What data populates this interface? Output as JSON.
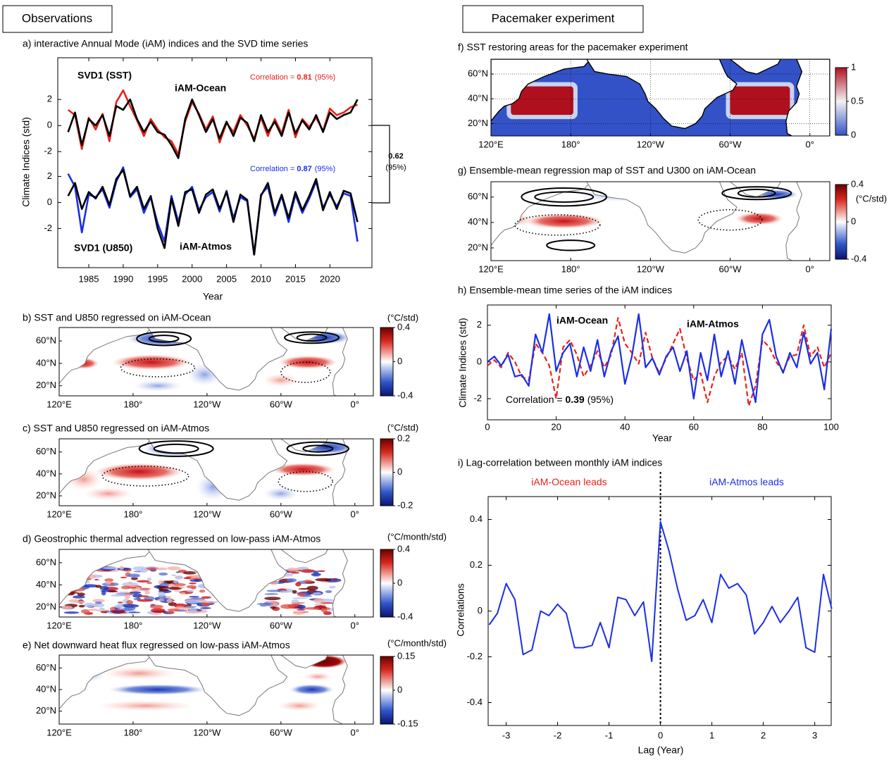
{
  "panel_headers": [
    "Observations",
    "Pacemaker experiment"
  ],
  "chart_data": [
    {
      "type": "line",
      "title": "a) interactive Annual Mode (iAM) indices and the SVD time series",
      "xlabel": "Year",
      "ylabel": "Climate Indices (std)",
      "x": [
        1982,
        1983,
        1984,
        1985,
        1986,
        1987,
        1988,
        1989,
        1990,
        1991,
        1992,
        1993,
        1994,
        1995,
        1996,
        1997,
        1998,
        1999,
        2000,
        2001,
        2002,
        2003,
        2004,
        2005,
        2006,
        2007,
        2008,
        2009,
        2010,
        2011,
        2012,
        2013,
        2014,
        2015,
        2016,
        2017,
        2018,
        2019,
        2020,
        2021,
        2022,
        2023,
        2024
      ],
      "xlim": [
        1980.5,
        2026.1
      ],
      "xticks": [
        1985,
        1990,
        1995,
        2000,
        2005,
        2010,
        2015,
        2020
      ],
      "ylim": [
        -10.9,
        5.2
      ],
      "yticks": [
        -2,
        0,
        2
      ],
      "y2lim": [
        -5.0,
        11.1
      ],
      "y2ticks": [
        -2,
        0,
        2
      ],
      "series": [
        {
          "name": "SVD1 (SST)",
          "color": "#e8231a",
          "values": [
            1.2,
            0.8,
            -1.8,
            0.6,
            -0.3,
            0.9,
            -1.2,
            1.8,
            2.7,
            1.5,
            0.4,
            -0.8,
            0.5,
            -0.3,
            -0.9,
            -1.2,
            -2.2,
            0.3,
            1.8,
            0.9,
            -0.3,
            0.7,
            -1.3,
            0.2,
            -0.5,
            0.8,
            0.0,
            -1.0,
            0.6,
            -0.8,
            0.5,
            -0.6,
            1.2,
            -0.9,
            0.5,
            -0.1,
            0.6,
            -0.4,
            1.3,
            0.8,
            1.0,
            1.4,
            1.6
          ]
        },
        {
          "name": "iAM-Ocean",
          "color": "#000000",
          "values": [
            -0.5,
            1.0,
            -1.5,
            0.5,
            0.0,
            0.8,
            -0.8,
            1.5,
            1.2,
            2.0,
            0.5,
            -0.5,
            0.3,
            -0.5,
            -0.7,
            -1.5,
            -2.5,
            0.5,
            2.0,
            0.8,
            -0.5,
            0.5,
            -1.0,
            0.3,
            -0.8,
            0.6,
            0.2,
            -1.2,
            0.8,
            -0.5,
            0.3,
            -0.8,
            1.0,
            -0.6,
            0.4,
            -0.3,
            0.8,
            -0.5,
            1.0,
            0.5,
            0.8,
            1.0,
            2.0
          ]
        },
        {
          "name": "SVD1 (U850)",
          "color": "#1a2ee8",
          "axis": "y2",
          "values": [
            2.2,
            1.2,
            -2.3,
            0.6,
            0.4,
            1.0,
            -0.4,
            1.6,
            2.7,
            0.4,
            1.0,
            -0.8,
            0.4,
            -1.6,
            -3.0,
            0.5,
            -1.5,
            0.6,
            1.2,
            -0.6,
            0.4,
            0.8,
            -0.7,
            0.9,
            -1.2,
            0.4,
            0.1,
            -4.0,
            0.6,
            1.2,
            -1.0,
            0.5,
            -1.5,
            0.6,
            -0.8,
            0.3,
            1.6,
            -0.4,
            0.6,
            -0.3,
            0.7,
            0.5,
            -3.0
          ]
        },
        {
          "name": "iAM-Atmos",
          "color": "#000000",
          "axis": "y2",
          "values": [
            0.5,
            1.5,
            -0.5,
            0.8,
            0.3,
            1.2,
            -0.2,
            1.8,
            2.5,
            0.5,
            1.2,
            -0.5,
            0.5,
            -2.0,
            -3.5,
            0.3,
            -1.8,
            0.8,
            1.0,
            -0.8,
            0.6,
            1.0,
            -0.5,
            0.8,
            -1.5,
            0.6,
            0.2,
            -4.0,
            0.5,
            1.5,
            -0.8,
            0.6,
            -1.2,
            0.8,
            -0.6,
            0.5,
            1.8,
            -0.6,
            0.8,
            -0.5,
            0.9,
            0.7,
            -1.5
          ]
        }
      ],
      "annotations": [
        {
          "text": "Correlation = ",
          "value": 0.81,
          "note": "(95%)",
          "color": "#e8231a"
        },
        {
          "text": "Correlation = ",
          "value": 0.87,
          "note": "(95%)",
          "color": "#1a2ee8"
        },
        {
          "value": 0.62,
          "note": "(95%)",
          "color": "#000000"
        }
      ]
    },
    {
      "type": "map",
      "title": "b) SST and U850 regressed on iAM-Ocean",
      "xlim": [
        120,
        375
      ],
      "ylim": [
        11,
        72
      ],
      "xticks": [
        {
          "value": 120,
          "label": "120°E"
        },
        {
          "value": 180,
          "label": "180°"
        },
        {
          "value": 240,
          "label": "120°W"
        },
        {
          "value": 300,
          "label": "60°W"
        },
        {
          "value": 360,
          "label": "0°"
        }
      ],
      "yticks": [
        {
          "value": 60,
          "label": "60°N"
        },
        {
          "value": 40,
          "label": "40°N"
        },
        {
          "value": 20,
          "label": "20°N"
        }
      ],
      "colorbar": {
        "lim": [
          -0.4,
          0.4
        ],
        "ticks": [
          0.4,
          0,
          -0.4
        ],
        "units": "(°C/std)"
      }
    },
    {
      "type": "map",
      "title": "c) SST and U850 regressed on iAM-Atmos",
      "xlim": [
        120,
        375
      ],
      "ylim": [
        11,
        72
      ],
      "xticks": [
        {
          "value": 120,
          "label": "120°E"
        },
        {
          "value": 180,
          "label": "180°"
        },
        {
          "value": 240,
          "label": "120°W"
        },
        {
          "value": 300,
          "label": "60°W"
        },
        {
          "value": 360,
          "label": "0°"
        }
      ],
      "yticks": [
        {
          "value": 60,
          "label": "60°N"
        },
        {
          "value": 40,
          "label": "40°N"
        },
        {
          "value": 20,
          "label": "20°N"
        }
      ],
      "colorbar": {
        "lim": [
          -0.2,
          0.2
        ],
        "ticks": [
          0.2,
          0,
          -0.2
        ],
        "units": "(°C/std)"
      }
    },
    {
      "type": "map",
      "title": "d) Geostrophic thermal advection regressed on low-pass iAM-Atmos",
      "xlim": [
        120,
        375
      ],
      "ylim": [
        11,
        72
      ],
      "xticks": [
        {
          "value": 120,
          "label": "120°E"
        },
        {
          "value": 180,
          "label": "180°"
        },
        {
          "value": 240,
          "label": "120°W"
        },
        {
          "value": 300,
          "label": "60°W"
        },
        {
          "value": 360,
          "label": "0°"
        }
      ],
      "yticks": [
        {
          "value": 60,
          "label": "60°N"
        },
        {
          "value": 40,
          "label": "40°N"
        },
        {
          "value": 20,
          "label": "20°N"
        }
      ],
      "colorbar": {
        "lim": [
          -0.4,
          0.4
        ],
        "ticks": [
          0.4,
          0,
          -0.4
        ],
        "units": "(°C/month/std)"
      }
    },
    {
      "type": "map",
      "title": "e) Net downward heat flux regressed on low-pass iAM-Atmos",
      "xlim": [
        120,
        375
      ],
      "ylim": [
        8,
        72
      ],
      "xticks": [
        {
          "value": 120,
          "label": "120°E"
        },
        {
          "value": 180,
          "label": "180°"
        },
        {
          "value": 240,
          "label": "120°W"
        },
        {
          "value": 300,
          "label": "60°W"
        },
        {
          "value": 360,
          "label": "0°"
        }
      ],
      "yticks": [
        {
          "value": 60,
          "label": "60°N"
        },
        {
          "value": 40,
          "label": "40°N"
        },
        {
          "value": 20,
          "label": "20°N"
        }
      ],
      "colorbar": {
        "lim": [
          -0.15,
          0.15
        ],
        "ticks": [
          0.15,
          0,
          -0.15
        ],
        "units": "(°C/month/std)"
      }
    },
    {
      "type": "map",
      "title": "f) SST restoring areas for the pacemaker experiment",
      "xlim": [
        120,
        375
      ],
      "ylim": [
        10,
        72
      ],
      "xticks": [
        {
          "value": 120,
          "label": "120°E"
        },
        {
          "value": 180,
          "label": "180°"
        },
        {
          "value": 240,
          "label": "120°W"
        },
        {
          "value": 300,
          "label": "60°W"
        },
        {
          "value": 360,
          "label": "0°"
        }
      ],
      "yticks": [
        {
          "value": 60,
          "label": "60°N"
        },
        {
          "value": 40,
          "label": "40°N"
        },
        {
          "value": 20,
          "label": "20°N"
        }
      ],
      "colorbar": {
        "lim": [
          0,
          1
        ],
        "ticks": [
          1,
          0.5,
          0
        ]
      }
    },
    {
      "type": "map",
      "title": "g) Ensemble-mean regression map of SST and U300 on iAM-Ocean",
      "xlim": [
        120,
        375
      ],
      "ylim": [
        10,
        72
      ],
      "xticks": [
        {
          "value": 120,
          "label": "120°E"
        },
        {
          "value": 180,
          "label": "180°"
        },
        {
          "value": 240,
          "label": "120°W"
        },
        {
          "value": 300,
          "label": "60°W"
        },
        {
          "value": 360,
          "label": "0°"
        }
      ],
      "yticks": [
        {
          "value": 60,
          "label": "60°N"
        },
        {
          "value": 40,
          "label": "40°N"
        },
        {
          "value": 20,
          "label": "20°N"
        }
      ],
      "colorbar": {
        "lim": [
          -0.4,
          0.4
        ],
        "ticks": [
          0.4,
          0,
          -0.4
        ],
        "units": "(°C/std)"
      }
    },
    {
      "type": "line",
      "title": "h) Ensemble-mean time series of the iAM indices",
      "xlabel": "Year",
      "ylabel": "Climate Indices (std)",
      "x": [
        0,
        2,
        4,
        6,
        8,
        10,
        12,
        14,
        16,
        18,
        20,
        22,
        24,
        26,
        28,
        30,
        32,
        34,
        36,
        38,
        40,
        42,
        44,
        46,
        48,
        50,
        52,
        54,
        56,
        58,
        60,
        62,
        64,
        66,
        68,
        70,
        72,
        74,
        76,
        78,
        80,
        82,
        84,
        86,
        88,
        90,
        92,
        94,
        96,
        98,
        100
      ],
      "xlim": [
        0,
        100
      ],
      "xticks": [
        0,
        20,
        40,
        60,
        80,
        100
      ],
      "ylim": [
        -3.15,
        3.1
      ],
      "yticks": [
        -2,
        0,
        2
      ],
      "series": [
        {
          "name": "iAM-Ocean",
          "color": "#e8231a",
          "dashed": true,
          "values": [
            -0.2,
            0.1,
            -0.3,
            0.5,
            0.0,
            -0.8,
            -1.0,
            1.0,
            0.5,
            -0.2,
            -2.0,
            0.8,
            1.2,
            0.4,
            -0.8,
            -0.2,
            0.6,
            -0.3,
            0.4,
            2.4,
            1.0,
            0.5,
            -0.1,
            1.6,
            0.2,
            -0.6,
            0.2,
            1.0,
            1.8,
            0.2,
            -1.0,
            -0.6,
            -2.2,
            -0.8,
            0.0,
            0.3,
            -0.4,
            0.5,
            -2.4,
            -1.3,
            1.2,
            0.8,
            0.0,
            -0.5,
            0.3,
            0.4,
            2.0,
            0.3,
            0.8,
            -0.3,
            0.5
          ]
        },
        {
          "name": "iAM-Atmos",
          "color": "#1a2ee8",
          "values": [
            0.0,
            0.3,
            -0.2,
            0.4,
            -0.8,
            -0.7,
            -1.3,
            1.5,
            0.5,
            2.6,
            -0.5,
            0.5,
            1.0,
            -0.8,
            0.8,
            -0.5,
            1.2,
            -0.8,
            0.6,
            1.4,
            -1.2,
            0.3,
            2.6,
            -0.3,
            0.2,
            -0.7,
            0.3,
            0.8,
            -0.5,
            0.6,
            -2.0,
            0.5,
            -1.0,
            1.5,
            -0.8,
            0.6,
            -1.2,
            1.2,
            -0.5,
            -2.2,
            1.5,
            2.3,
            0.3,
            -0.6,
            0.5,
            -0.3,
            1.6,
            -0.1,
            0.5,
            -1.5,
            1.8
          ]
        }
      ],
      "annotations": [
        {
          "text": "Correlation = ",
          "value": 0.39,
          "note": "(95%)",
          "color": "#000000"
        }
      ]
    },
    {
      "type": "line",
      "title": "i) Lag-correlation between monthly iAM indices",
      "xlabel": "Lag (Year)",
      "ylabel": "Correlations",
      "x": [
        -3.33,
        -3.17,
        -3,
        -2.83,
        -2.67,
        -2.5,
        -2.33,
        -2.17,
        -2,
        -1.83,
        -1.67,
        -1.5,
        -1.33,
        -1.17,
        -1,
        -0.83,
        -0.67,
        -0.5,
        -0.33,
        -0.17,
        0,
        0.17,
        0.33,
        0.5,
        0.67,
        0.83,
        1,
        1.17,
        1.33,
        1.5,
        1.67,
        1.83,
        2,
        2.17,
        2.33,
        2.5,
        2.67,
        2.83,
        3,
        3.17,
        3.33
      ],
      "xlim": [
        -3.35,
        3.32
      ],
      "xticks": [
        -3,
        -2,
        -1,
        0,
        1,
        2,
        3
      ],
      "ylim": [
        -0.5,
        0.5
      ],
      "yticks": [
        -0.4,
        -0.2,
        0,
        0.2,
        0.4
      ],
      "vline": 0,
      "series": [
        {
          "color": "#1a2ee8",
          "values": [
            -0.06,
            -0.01,
            0.12,
            0.05,
            -0.19,
            -0.17,
            0.0,
            -0.02,
            0.03,
            -0.01,
            -0.16,
            -0.16,
            -0.15,
            -0.05,
            -0.16,
            0.06,
            0.05,
            -0.02,
            0.04,
            -0.22,
            0.39,
            0.26,
            0.1,
            -0.04,
            -0.02,
            0.05,
            -0.05,
            0.16,
            0.1,
            0.12,
            0.07,
            -0.1,
            -0.05,
            0.02,
            -0.05,
            0.0,
            0.06,
            -0.16,
            -0.18,
            0.16,
            0.01
          ]
        }
      ],
      "annotations": [
        {
          "text": "iAM-Ocean leads",
          "color": "#e8231a"
        },
        {
          "text": "iAM-Atmos leads",
          "color": "#1a2ee8"
        }
      ]
    }
  ]
}
